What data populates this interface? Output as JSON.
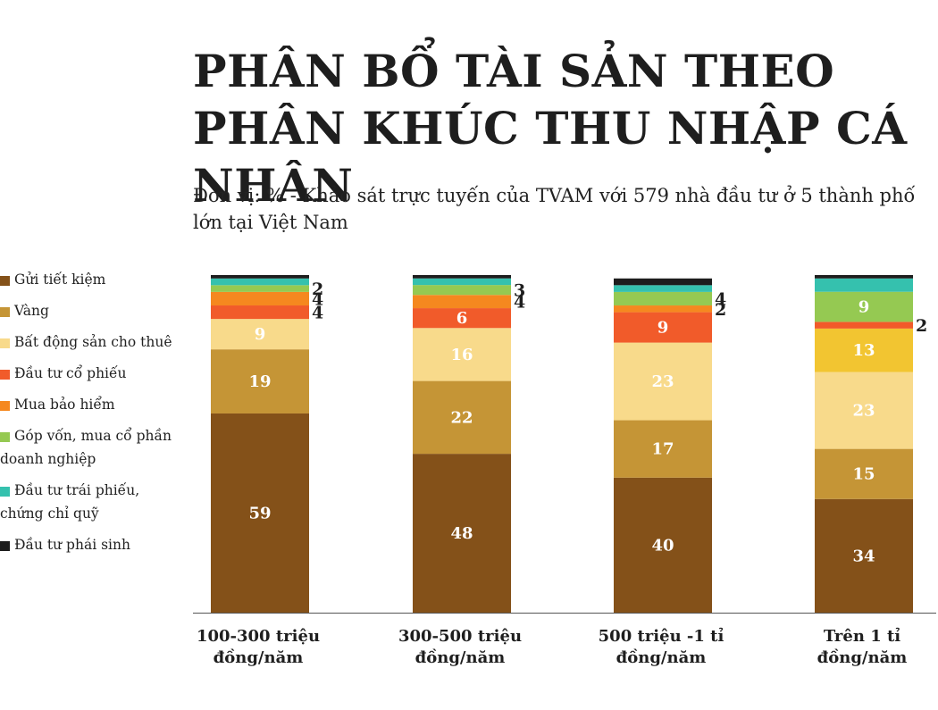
{
  "title": "PHÂN BỔ TÀI SẢN THEO PHÂN KHÚC THU NHẬP CÁ NHÂN",
  "subtitle": "Đơn vị: % - Khảo sát trực tuyến của TVAM với 579 nhà đầu tư ở 5 thành phố lớn tại Việt Nam",
  "chart_data": {
    "type": "bar",
    "stacked": true,
    "ylim": [
      0,
      100
    ],
    "categories": [
      "100-300 triệu đồng/năm",
      "300-500 triệu đồng/năm",
      "500 triệu -1 tỉ đồng/năm",
      "Trên 1 tỉ đồng/năm"
    ],
    "category_lines": [
      [
        "100-300 triệu",
        "đồng/năm"
      ],
      [
        "300-500 triệu",
        "đồng/năm"
      ],
      [
        "500 triệu -1 tỉ",
        "đồng/năm"
      ],
      [
        "Trên 1 tỉ",
        "đồng/năm"
      ]
    ],
    "legend_position": "left",
    "series": [
      {
        "name": "Gửi tiết kiệm",
        "color": "#845119",
        "values": [
          59,
          48,
          40,
          34
        ]
      },
      {
        "name": "Vàng",
        "color": "#c59536",
        "values": [
          19,
          22,
          17,
          15
        ]
      },
      {
        "name": "Bất động sản cho thuê",
        "color": "#f8da8b",
        "values": [
          9,
          16,
          23,
          23
        ]
      },
      {
        "name": "Vàng",
        "color": "#f2c531",
        "values": [
          0,
          0,
          0,
          13
        ],
        "legend": false
      },
      {
        "name": "Đầu tư cổ phiếu",
        "color": "#f15b2a",
        "values": [
          4,
          6,
          9,
          2
        ]
      },
      {
        "name": "Mua bảo hiểm",
        "color": "#f5881f",
        "values": [
          4,
          4,
          2,
          0
        ]
      },
      {
        "name": "Góp vốn, mua cổ phần doanh nghiệp",
        "color": "#95c952",
        "values": [
          2,
          3,
          4,
          9
        ]
      },
      {
        "name": "Đầu tư trái phiếu, chứng chỉ quỹ",
        "color": "#35c1ae",
        "values": [
          2,
          2,
          2,
          4
        ]
      },
      {
        "name": "Đầu tư phái sinh",
        "color": "#1d1d1d",
        "values": [
          1,
          1,
          2,
          1
        ]
      }
    ],
    "data_labels": [
      [
        "59",
        "19",
        "9",
        "",
        "4",
        "4",
        "2",
        "",
        ""
      ],
      [
        "48",
        "22",
        "16",
        "",
        "6",
        "4",
        "3",
        "",
        ""
      ],
      [
        "40",
        "17",
        "23",
        "",
        "9",
        "2",
        "4",
        "",
        ""
      ],
      [
        "34",
        "15",
        "23",
        "13",
        "2",
        "",
        "9",
        "",
        ""
      ]
    ]
  },
  "legend_items": [
    {
      "label": "Gửi tiết kiệm",
      "color": "#845119"
    },
    {
      "label": "Vàng",
      "color": "#c59536"
    },
    {
      "label": "Bất động sản cho thuê",
      "color": "#f8da8b"
    },
    {
      "label": "Đầu tư cổ phiếu",
      "color": "#f15b2a"
    },
    {
      "label": "Mua bảo hiểm",
      "color": "#f5881f"
    },
    {
      "label": "Góp vốn, mua cổ phần doanh nghiệp",
      "color": "#95c952"
    },
    {
      "label": "Đầu tư trái phiếu, chứng chỉ quỹ",
      "color": "#35c1ae"
    },
    {
      "label": "Đầu tư phái sinh",
      "color": "#1d1d1d"
    }
  ]
}
